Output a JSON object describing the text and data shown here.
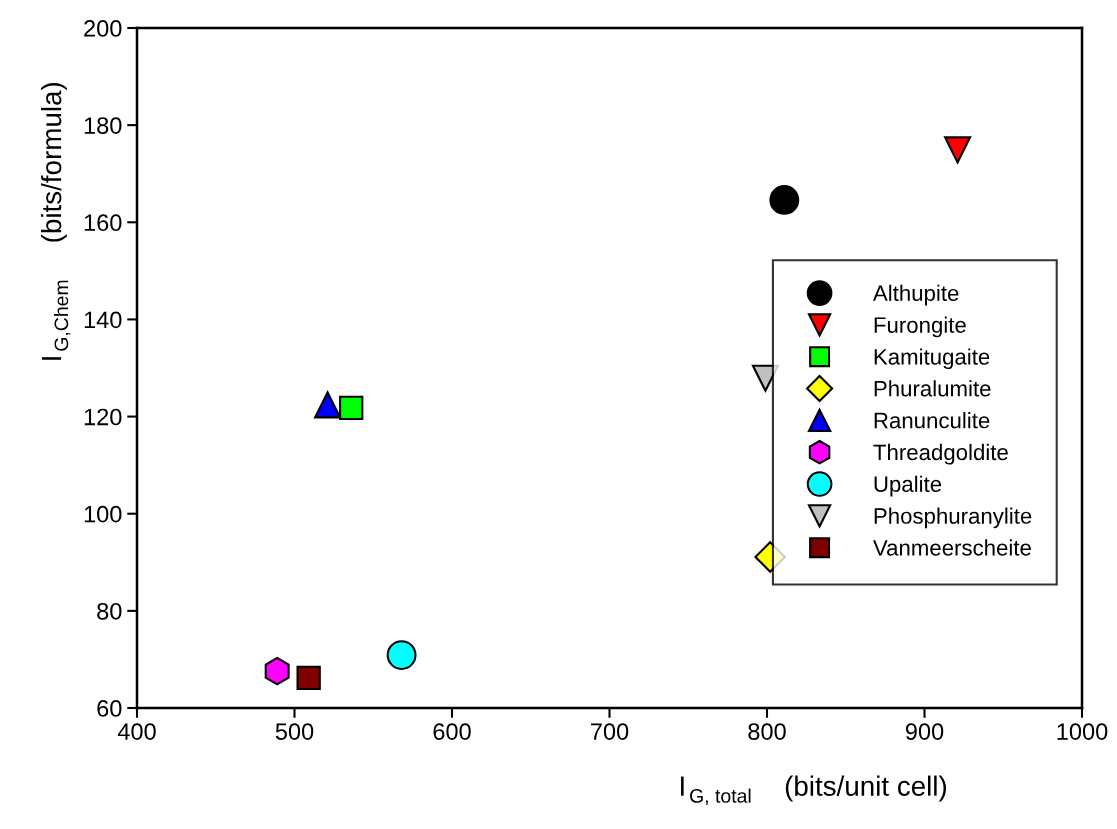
{
  "chart_data": {
    "type": "scatter",
    "xlabel": "I$_{G, total}$ (bits/unit cell)",
    "ylabel": "I$_{G,Chem}$ (bits/formula)",
    "xlim": [
      400,
      1000
    ],
    "xticks": [
      400,
      500,
      600,
      700,
      800,
      900,
      1000
    ],
    "ylim": [
      60,
      200
    ],
    "yticks": [
      60,
      80,
      100,
      120,
      140,
      160,
      180,
      200
    ],
    "grid": false,
    "legend": "right",
    "series": [
      {
        "name": "Althupite",
        "color": "#000000",
        "marker": "circle",
        "x": [
          811
        ],
        "values": [
          164.6
        ]
      },
      {
        "name": "Furongite",
        "color": "#ff0000",
        "marker": "triangle_down",
        "x": [
          921
        ],
        "values": [
          174.9
        ]
      },
      {
        "name": "Kamitugaite",
        "color": "#00ff00",
        "marker": "square",
        "x": [
          536
        ],
        "values": [
          121.8
        ]
      },
      {
        "name": "Phuralumite",
        "color": "#ffff00",
        "marker": "diamond",
        "x": [
          802
        ],
        "values": [
          91.1
        ]
      },
      {
        "name": "Ranunculite",
        "color": "#0000ff",
        "marker": "triangle",
        "x": [
          521
        ],
        "values": [
          122.4
        ]
      },
      {
        "name": "Threadgoldite",
        "color": "#ff00ff",
        "x": [
          489
        ],
        "values": [
          67.6
        ]
      },
      {
        "name": "Upalite",
        "color": "#00ffff",
        "marker": "circle",
        "x": [
          568
        ],
        "values": [
          70.9
        ]
      },
      {
        "name": "Phosphuranylite",
        "color": "#c0c0c0",
        "marker": "triangle_down",
        "x": [
          799
        ],
        "values": [
          127.9
        ]
      },
      {
        "name": "Vanmeerscheite",
        "color": "#800000",
        "marker": "square",
        "x": [
          509
        ],
        "values": [
          66.2
        ]
      }
    ]
  }
}
